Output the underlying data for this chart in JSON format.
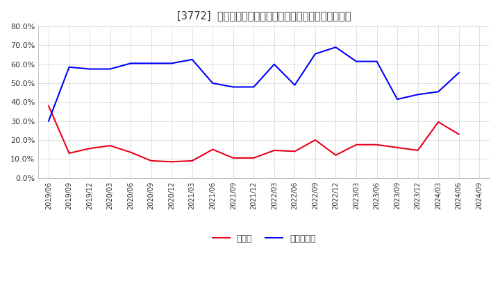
{
  "title": "[3772]  現須金、有利子負債の総資産に対する比率の推移",
  "x_labels": [
    "2019/06",
    "2019/09",
    "2019/12",
    "2020/03",
    "2020/06",
    "2020/09",
    "2020/12",
    "2021/03",
    "2021/06",
    "2021/09",
    "2021/12",
    "2022/03",
    "2022/06",
    "2022/09",
    "2022/12",
    "2023/03",
    "2023/06",
    "2023/09",
    "2023/12",
    "2024/03",
    "2024/06",
    "2024/09"
  ],
  "cash": [
    0.38,
    0.13,
    0.155,
    0.17,
    0.135,
    0.09,
    0.085,
    0.09,
    0.15,
    0.105,
    0.105,
    0.145,
    0.14,
    0.2,
    0.12,
    0.175,
    0.175,
    0.16,
    0.145,
    0.295,
    0.23,
    null
  ],
  "interest_bearing": [
    0.3,
    0.585,
    0.575,
    0.575,
    0.605,
    0.605,
    0.605,
    0.625,
    0.5,
    0.48,
    0.48,
    0.6,
    0.49,
    0.655,
    0.69,
    0.615,
    0.615,
    0.415,
    0.44,
    0.455,
    0.555,
    null
  ],
  "cash_color": "#e8001c",
  "interest_color": "#0000ff",
  "background_color": "#ffffff",
  "grid_color": "#aaaaaa",
  "ylim": [
    0.0,
    0.8
  ],
  "yticks": [
    0.0,
    0.1,
    0.2,
    0.3,
    0.4,
    0.5,
    0.6,
    0.7,
    0.8
  ],
  "legend_cash": "現須金",
  "legend_interest": "有利子負債"
}
